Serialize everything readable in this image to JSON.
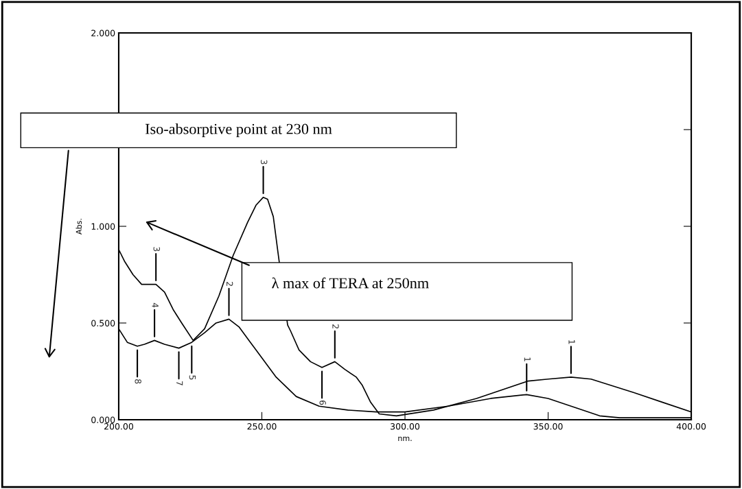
{
  "chart_data": {
    "type": "line",
    "xlabel": "nm.",
    "ylabel": "Abs.",
    "xlim": [
      200,
      400
    ],
    "ylim": [
      0,
      2
    ],
    "xticks": [
      {
        "value": 200,
        "label": "200.00"
      },
      {
        "value": 250,
        "label": "250.00"
      },
      {
        "value": 300,
        "label": "300.00"
      },
      {
        "value": 350,
        "label": "350.00"
      },
      {
        "value": 400,
        "label": "400.00"
      }
    ],
    "yticks": [
      {
        "value": 0,
        "label": "0.000"
      },
      {
        "value": 0.5,
        "label": "0.500"
      },
      {
        "value": 1,
        "label": "1.000"
      },
      {
        "value": 1.5,
        "label": null
      },
      {
        "value": 2,
        "label": "2.000"
      }
    ],
    "grid": false,
    "legend": false,
    "line_style": "solid",
    "series": [
      {
        "color": "#000000",
        "x": [
          200,
          202,
          205,
          208,
          213,
          216,
          219,
          222,
          226,
          230,
          235,
          240,
          245,
          248,
          250.5,
          252,
          254,
          255.5,
          259,
          260,
          263,
          267,
          271,
          275.5,
          279,
          283,
          285,
          288,
          291,
          297,
          310,
          325,
          343,
          350,
          358,
          365,
          380,
          390,
          400
        ],
        "values": [
          0.88,
          0.82,
          0.75,
          0.7,
          0.7,
          0.66,
          0.57,
          0.5,
          0.41,
          0.47,
          0.64,
          0.85,
          1.02,
          1.11,
          1.15,
          1.14,
          1.05,
          0.88,
          0.49,
          0.46,
          0.36,
          0.3,
          0.27,
          0.3,
          0.26,
          0.22,
          0.18,
          0.09,
          0.03,
          0.02,
          0.05,
          0.11,
          0.2,
          0.21,
          0.22,
          0.21,
          0.14,
          0.09,
          0.04
        ]
      },
      {
        "color": "#000000",
        "x": [
          200,
          203,
          206.5,
          209,
          212.5,
          216,
          221,
          225.5,
          230,
          234,
          238.5,
          242,
          246,
          250,
          255,
          262,
          270,
          280,
          290,
          300,
          315,
          330,
          342.5,
          350,
          360,
          368,
          375,
          400
        ],
        "values": [
          0.47,
          0.4,
          0.38,
          0.39,
          0.41,
          0.39,
          0.37,
          0.4,
          0.45,
          0.5,
          0.52,
          0.48,
          0.4,
          0.32,
          0.22,
          0.12,
          0.07,
          0.05,
          0.04,
          0.04,
          0.07,
          0.11,
          0.13,
          0.11,
          0.06,
          0.02,
          0.01,
          0.01
        ]
      }
    ],
    "annotations": [
      {
        "text": "3",
        "x": 250.5,
        "y": 1.15
      },
      {
        "text": "2",
        "x": 275.5,
        "y": 0.3
      },
      {
        "text": "6",
        "x": 271,
        "y": 0.27
      },
      {
        "text": "3",
        "x": 213,
        "y": 0.7
      },
      {
        "text": "1",
        "x": 358,
        "y": 0.22
      },
      {
        "text": "1",
        "x": 342.5,
        "y": 0.13
      },
      {
        "text": "4",
        "x": 212.5,
        "y": 0.41
      },
      {
        "text": "8",
        "x": 206.5,
        "y": 0.38
      },
      {
        "text": "7",
        "x": 221,
        "y": 0.37
      },
      {
        "text": "5",
        "x": 225.5,
        "y": 0.4
      },
      {
        "text": "2",
        "x": 238.5,
        "y": 0.52
      },
      "Iso-absorptive point at 230 nm",
      "λ max of TERA at 250nm"
    ]
  }
}
